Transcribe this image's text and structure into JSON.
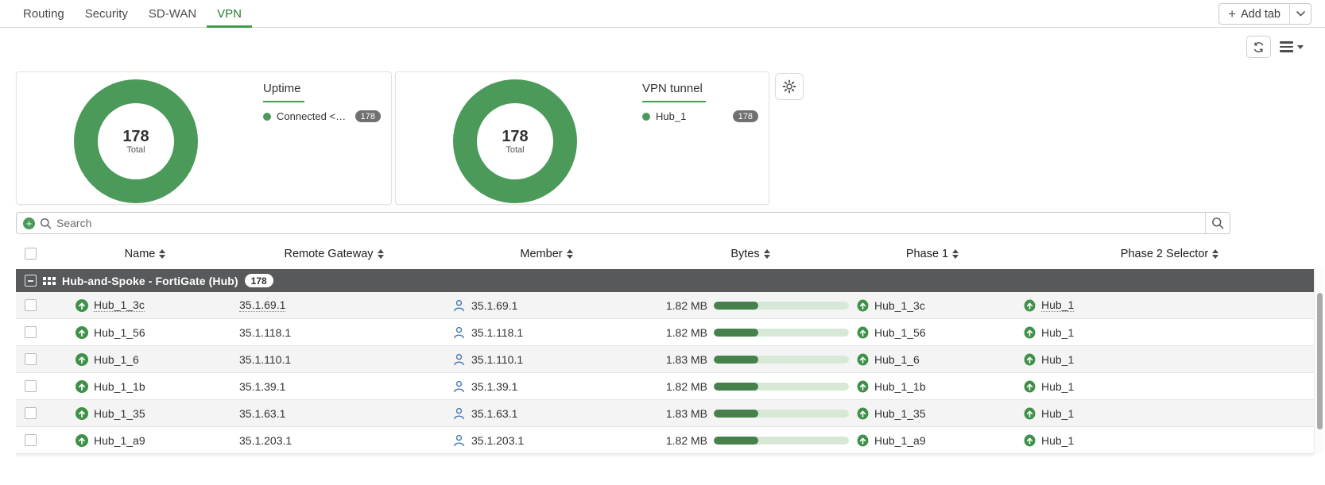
{
  "tabs": {
    "items": [
      {
        "label": "Routing",
        "active": false
      },
      {
        "label": "Security",
        "active": false
      },
      {
        "label": "SD-WAN",
        "active": false
      },
      {
        "label": "VPN",
        "active": true
      }
    ],
    "add_tab_label": "Add tab"
  },
  "chart_data": [
    {
      "type": "pie",
      "variant": "donut",
      "title": "Uptime",
      "legend_position": "right",
      "segments": [
        {
          "label": "Connected < 3 d...",
          "value": 178,
          "color": "#4c9a5a"
        }
      ],
      "total": 178,
      "center_value": "178",
      "center_label": "Total"
    },
    {
      "type": "pie",
      "variant": "donut",
      "title": "VPN tunnel",
      "legend_position": "right",
      "segments": [
        {
          "label": "Hub_1",
          "value": 178,
          "color": "#4c9a5a"
        }
      ],
      "total": 178,
      "center_value": "178",
      "center_label": "Total"
    }
  ],
  "search": {
    "placeholder": "Search"
  },
  "table": {
    "columns": [
      "Name",
      "Remote Gateway",
      "Member",
      "Bytes",
      "Phase 1",
      "Phase 2 Selector"
    ],
    "group": {
      "label": "Hub-and-Spoke - FortiGate (Hub)",
      "count": "178"
    },
    "rows": [
      {
        "name": "Hub_1_3c",
        "remote_gateway": "35.1.69.1",
        "member": "35.1.69.1",
        "bytes": "1.82 MB",
        "bytes_pct": 33,
        "phase1": "Hub_1_3c",
        "phase2": "Hub_1"
      },
      {
        "name": "Hub_1_56",
        "remote_gateway": "35.1.118.1",
        "member": "35.1.118.1",
        "bytes": "1.82 MB",
        "bytes_pct": 33,
        "phase1": "Hub_1_56",
        "phase2": "Hub_1"
      },
      {
        "name": "Hub_1_6",
        "remote_gateway": "35.1.110.1",
        "member": "35.1.110.1",
        "bytes": "1.83 MB",
        "bytes_pct": 33,
        "phase1": "Hub_1_6",
        "phase2": "Hub_1"
      },
      {
        "name": "Hub_1_1b",
        "remote_gateway": "35.1.39.1",
        "member": "35.1.39.1",
        "bytes": "1.82 MB",
        "bytes_pct": 33,
        "phase1": "Hub_1_1b",
        "phase2": "Hub_1"
      },
      {
        "name": "Hub_1_35",
        "remote_gateway": "35.1.63.1",
        "member": "35.1.63.1",
        "bytes": "1.83 MB",
        "bytes_pct": 33,
        "phase1": "Hub_1_35",
        "phase2": "Hub_1"
      },
      {
        "name": "Hub_1_a9",
        "remote_gateway": "35.1.203.1",
        "member": "35.1.203.1",
        "bytes": "1.82 MB",
        "bytes_pct": 33,
        "phase1": "Hub_1_a9",
        "phase2": "Hub_1"
      }
    ]
  },
  "colors": {
    "accent_green": "#4c9a5a",
    "tab_active": "#267a33",
    "bar_fill": "#46804d",
    "bar_track": "#d7e9d6",
    "group_row_bg": "#58595b",
    "member_icon_blue": "#4a7ebb"
  }
}
